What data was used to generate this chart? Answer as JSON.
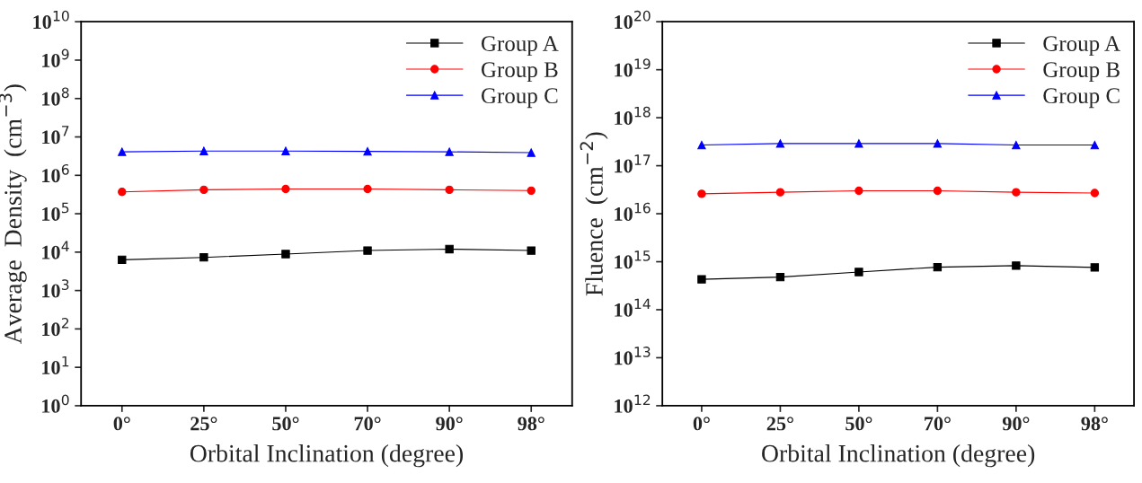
{
  "chart_data": [
    {
      "type": "line",
      "categories": [
        "0°",
        "25°",
        "50°",
        "70°",
        "90°",
        "98°"
      ],
      "xlabel": "Orbital Inclination (degree)",
      "ylabel": "Average  Density  (cm$^{−3}$)",
      "log": "y",
      "ylim": [
        1,
        10000000000
      ],
      "yticks": [
        {
          "value": 1,
          "label": "10$^{0}$"
        },
        {
          "value": 10,
          "label": "10$^{1}$"
        },
        {
          "value": 100,
          "label": "10$^{2}$"
        },
        {
          "value": 1000,
          "label": "10$^{3}$"
        },
        {
          "value": 10000,
          "label": "10$^{4}$"
        },
        {
          "value": 100000,
          "label": "10$^{5}$"
        },
        {
          "value": 1000000,
          "label": "10$^{6}$"
        },
        {
          "value": 10000000,
          "label": "10$^{7}$"
        },
        {
          "value": 100000000,
          "label": "10$^{8}$"
        },
        {
          "value": 1000000000,
          "label": "10$^{9}$"
        },
        {
          "value": 10000000000,
          "label": "10$^{10}$"
        }
      ],
      "legend": "top right",
      "grid": false,
      "series": [
        {
          "name": "Group A",
          "color": "#000000",
          "marker": "square",
          "values": [
            6300,
            7300,
            8900,
            11000,
            12000,
            11000
          ]
        },
        {
          "name": "Group B",
          "color": "#ff0000",
          "marker": "circle",
          "values": [
            370000,
            420000,
            440000,
            440000,
            420000,
            400000
          ]
        },
        {
          "name": "Group C",
          "color": "#0000ff",
          "marker": "triangle",
          "values": [
            4100000,
            4300000,
            4300000,
            4200000,
            4100000,
            3900000
          ]
        }
      ]
    },
    {
      "type": "line",
      "categories": [
        "0°",
        "25°",
        "50°",
        "70°",
        "90°",
        "98°"
      ],
      "xlabel": "Orbital Inclination (degree)",
      "ylabel": "Fluence  (cm$^{−2}$)",
      "log": "y",
      "ylim": [
        1000000000000.0,
        1e+20
      ],
      "yticks": [
        {
          "value": 1000000000000.0,
          "label": "10$^{12}$"
        },
        {
          "value": 10000000000000.0,
          "label": "10$^{13}$"
        },
        {
          "value": 100000000000000.0,
          "label": "10$^{14}$"
        },
        {
          "value": 1000000000000000.0,
          "label": "10$^{15}$"
        },
        {
          "value": 1e+16,
          "label": "10$^{16}$"
        },
        {
          "value": 1e+17,
          "label": "10$^{17}$"
        },
        {
          "value": 1e+18,
          "label": "10$^{18}$"
        },
        {
          "value": 1e+19,
          "label": "10$^{19}$"
        },
        {
          "value": 1e+20,
          "label": "10$^{20}$"
        }
      ],
      "legend": "top right",
      "grid": false,
      "series": [
        {
          "name": "Group A",
          "color": "#000000",
          "marker": "square",
          "values": [
            430000000000000.0,
            480000000000000.0,
            610000000000000.0,
            770000000000000.0,
            830000000000000.0,
            760000000000000.0
          ]
        },
        {
          "name": "Group B",
          "color": "#ff0000",
          "marker": "circle",
          "values": [
            2.6e+16,
            2.8e+16,
            3e+16,
            3e+16,
            2.8e+16,
            2.7e+16
          ]
        },
        {
          "name": "Group C",
          "color": "#0000ff",
          "marker": "triangle",
          "values": [
            2.7e+17,
            2.9e+17,
            2.9e+17,
            2.9e+17,
            2.7e+17,
            2.7e+17
          ]
        }
      ]
    }
  ]
}
